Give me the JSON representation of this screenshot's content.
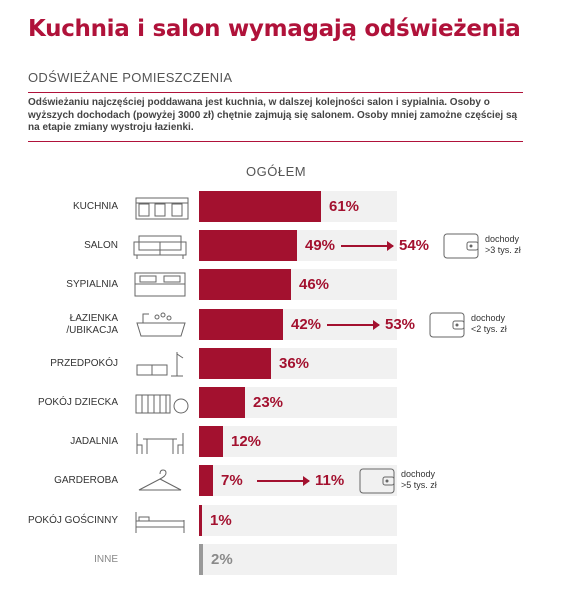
{
  "title": "Kuchnia i salon wymagają odświeżenia",
  "section_heading": "ODŚWIEŻANE POMIESZCZENIA",
  "description": "Odświeżaniu najczęściej poddawana jest kuchnia, w dalszej kolejności salon i sypialnia. Osoby o wyższych dochodach (powyżej 3000 zł) chętnie zajmują się salonem. Osoby mniej zamożne częściej są na etapie zmiany wystroju łazienki.",
  "colors": {
    "accent": "#a3112f",
    "title": "#b0123a",
    "other": "#999999",
    "track": "#f1f1f1"
  },
  "chart_data": {
    "type": "bar",
    "orientation": "horizontal",
    "group_label": "OGÓŁEM",
    "xlim": [
      0,
      100
    ],
    "rows": [
      {
        "category": "KUCHNIA",
        "value": 61,
        "label": "61%",
        "icon": "kitchen-icon"
      },
      {
        "category": "SALON",
        "value": 49,
        "label": "49%",
        "icon": "sofa-icon",
        "segment": {
          "value": 54,
          "label": "54%",
          "note_line1": "dochody",
          "note_line2": ">3 tys. zł"
        }
      },
      {
        "category": "SYPIALNIA",
        "value": 46,
        "label": "46%",
        "icon": "bed-icon"
      },
      {
        "category_line1": "ŁAZIENKA",
        "category_line2": "/UBIKACJA",
        "value": 42,
        "label": "42%",
        "icon": "bathtub-icon",
        "segment": {
          "value": 53,
          "label": "53%",
          "note_line1": "dochody",
          "note_line2": "<2 tys. zł"
        }
      },
      {
        "category": "PRZEDPOKÓJ",
        "value": 36,
        "label": "36%",
        "icon": "hallway-icon"
      },
      {
        "category": "POKÓJ DZIECKA",
        "value": 23,
        "label": "23%",
        "icon": "crib-icon"
      },
      {
        "category": "JADALNIA",
        "value": 12,
        "label": "12%",
        "icon": "dining-table-icon"
      },
      {
        "category": "GARDEROBA",
        "value": 7,
        "label": "7%",
        "icon": "hanger-icon",
        "segment": {
          "value": 11,
          "label": "11%",
          "note_line1": "dochody",
          "note_line2": ">5 tys. zł"
        }
      },
      {
        "category": "POKÓJ GOŚCINNY",
        "value": 1,
        "label": "1%",
        "icon": "guest-bed-icon"
      },
      {
        "category": "INNE",
        "value": 2,
        "label": "2%",
        "icon": "",
        "muted": true
      }
    ]
  }
}
